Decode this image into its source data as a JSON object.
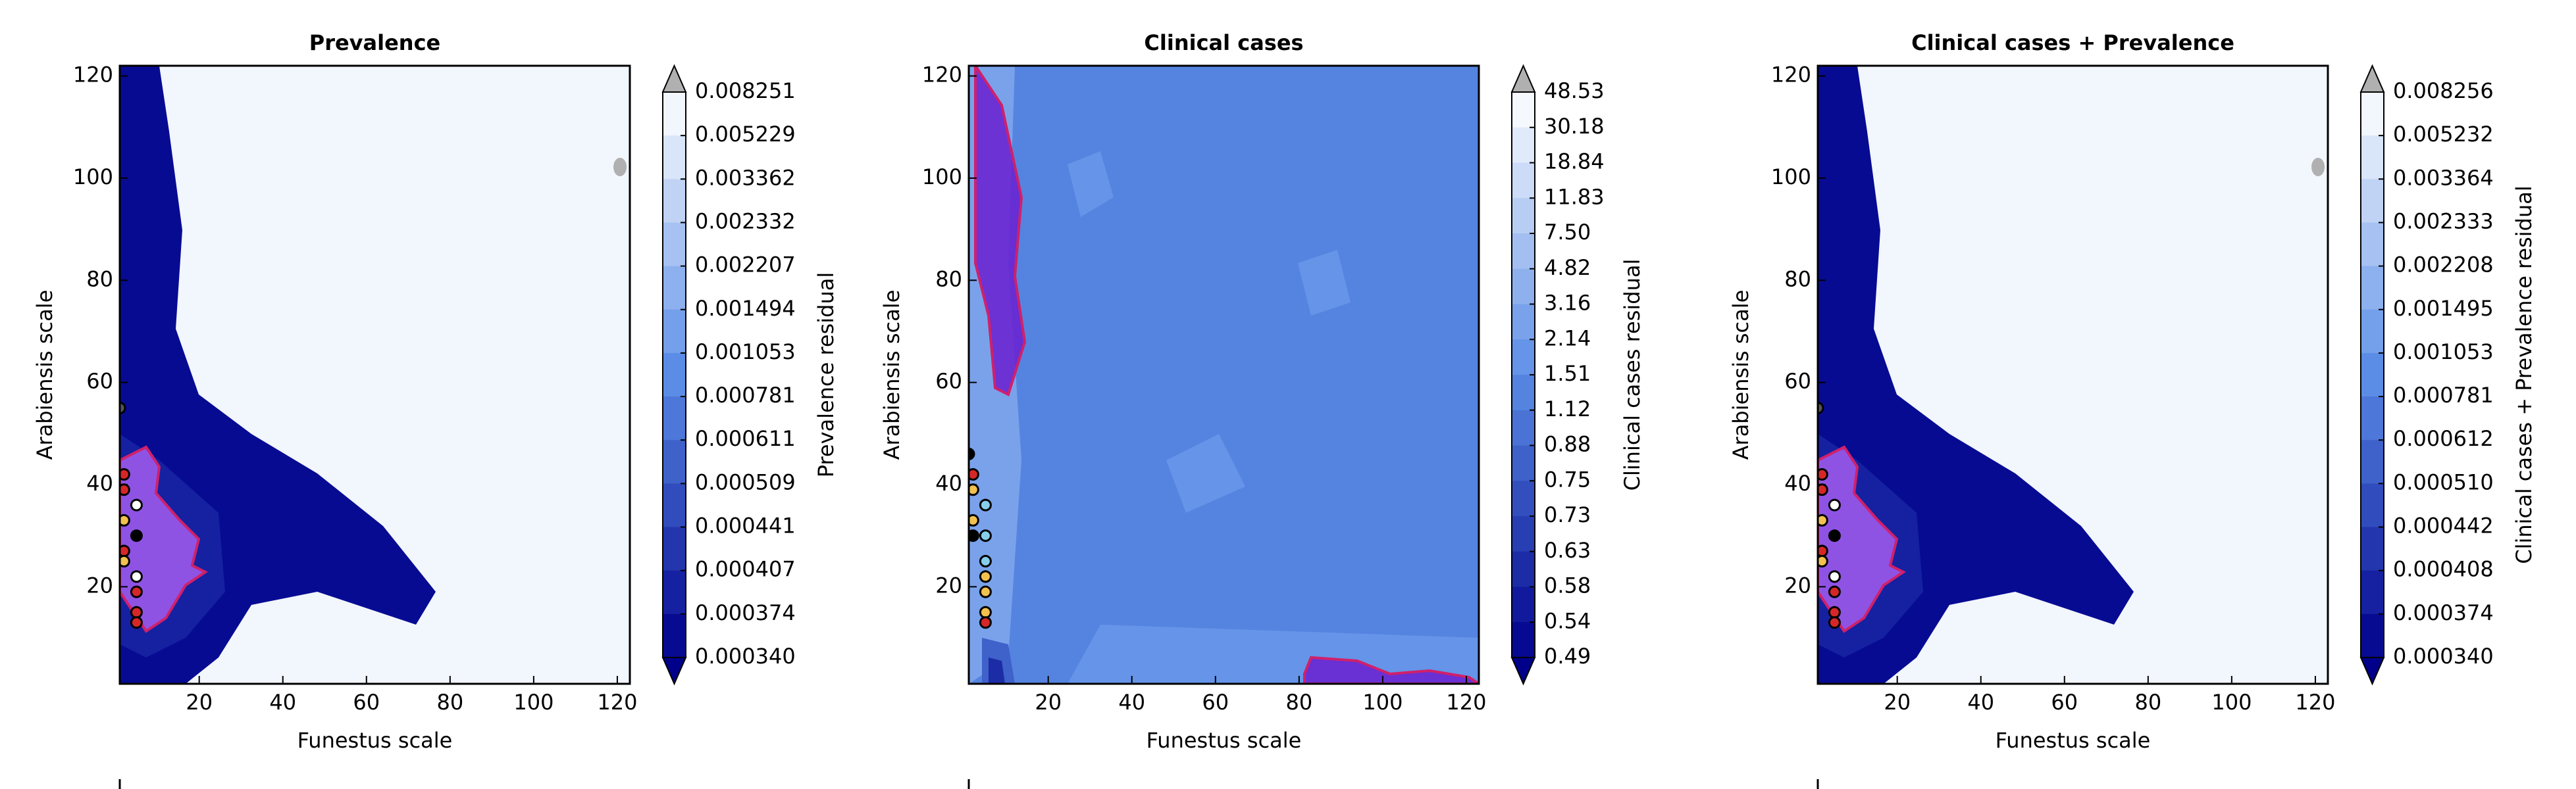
{
  "chart_data": [
    {
      "type": "contour",
      "title": "Prevalence",
      "xlabel": "Funestus scale",
      "ylabel": "Arabiensis scale",
      "colorbar_label": "Prevalence residual",
      "xlim": [
        1,
        123
      ],
      "ylim": [
        1,
        122
      ],
      "xticks": [
        20,
        40,
        60,
        80,
        100,
        120
      ],
      "yticks": [
        20,
        40,
        60,
        80,
        100,
        120
      ],
      "levels": [
        0.008251,
        0.005229,
        0.003362,
        0.002332,
        0.002207,
        0.001494,
        0.001053,
        0.000781,
        0.000611,
        0.000509,
        0.000441,
        0.000407,
        0.000374,
        {
          "value": 0.00034,
          "label": "0.000340"
        }
      ],
      "cmap": [
        "#00008b",
        "#5b8de6",
        "#ffffff"
      ],
      "over_color": "#b0b0b0",
      "points": {
        "x": [
          1,
          2,
          2,
          5,
          2,
          5,
          2,
          2,
          5,
          5,
          5,
          5
        ],
        "y": [
          55,
          42,
          39,
          36,
          33,
          30,
          27,
          25,
          22,
          19,
          15,
          13
        ],
        "colors": [
          "#555555",
          "#d62728",
          "#d62728",
          "#ffffff",
          "#f2c14e",
          "#000000",
          "#d62728",
          "#f2c14e",
          "#ffffff",
          "#d62728",
          "#d62728",
          "#d62728"
        ]
      }
    },
    {
      "type": "contour",
      "title": "Clinical cases",
      "xlabel": "Funestus scale",
      "ylabel": "Arabiensis scale",
      "colorbar_label": "Clinical cases residual",
      "xlim": [
        1,
        123
      ],
      "ylim": [
        1,
        122
      ],
      "xticks": [
        20,
        40,
        60,
        80,
        100,
        120
      ],
      "yticks": [
        20,
        40,
        60,
        80,
        100,
        120
      ],
      "levels": [
        48.53,
        30.18,
        18.84,
        11.83,
        {
          "value": 7.5,
          "label": "7.50"
        },
        4.82,
        3.16,
        2.14,
        1.51,
        1.12,
        0.88,
        0.75,
        0.73,
        0.63,
        0.58,
        0.54,
        0.49
      ],
      "cmap": [
        "#00008b",
        "#5b8de6",
        "#ffffff"
      ],
      "over_color": "#b0b0b0",
      "points": {
        "x": [
          1,
          2,
          2,
          2,
          2,
          5,
          5,
          5,
          5,
          5,
          5,
          5
        ],
        "y": [
          46,
          42,
          39,
          33,
          30,
          36,
          30,
          25,
          22,
          19,
          15,
          13
        ],
        "colors": [
          "#000000",
          "#d62728",
          "#f2c14e",
          "#f2c14e",
          "#000000",
          "#87ceeb",
          "#87ceeb",
          "#87ceeb",
          "#f2c14e",
          "#f2c14e",
          "#f2c14e",
          "#d62728"
        ]
      }
    },
    {
      "type": "contour",
      "title": "Clinical cases + Prevalence",
      "xlabel": "Funestus scale",
      "ylabel": "Arabiensis scale",
      "colorbar_label": "Clinical cases + Prevalence residual",
      "xlim": [
        1,
        123
      ],
      "ylim": [
        1,
        122
      ],
      "xticks": [
        20,
        40,
        60,
        80,
        100,
        120
      ],
      "yticks": [
        20,
        40,
        60,
        80,
        100,
        120
      ],
      "levels": [
        0.008256,
        0.005232,
        0.003364,
        0.002333,
        0.002208,
        0.001495,
        0.001053,
        0.000781,
        0.000612,
        {
          "value": 0.00051,
          "label": "0.000510"
        },
        0.000442,
        0.000408,
        0.000374,
        {
          "value": 0.00034,
          "label": "0.000340"
        }
      ],
      "cmap": [
        "#00008b",
        "#5b8de6",
        "#ffffff"
      ],
      "over_color": "#b0b0b0",
      "points": {
        "x": [
          1,
          2,
          2,
          5,
          2,
          5,
          2,
          2,
          5,
          5,
          5,
          5
        ],
        "y": [
          55,
          42,
          39,
          36,
          33,
          30,
          27,
          25,
          22,
          19,
          15,
          13
        ],
        "colors": [
          "#555555",
          "#d62728",
          "#d62728",
          "#ffffff",
          "#f2c14e",
          "#000000",
          "#d62728",
          "#f2c14e",
          "#ffffff",
          "#d62728",
          "#d62728",
          "#d62728"
        ]
      }
    }
  ]
}
